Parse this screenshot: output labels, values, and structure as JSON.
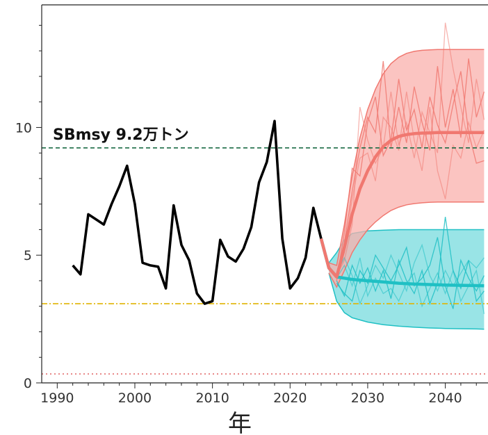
{
  "chart_data": {
    "type": "line",
    "title": "",
    "xlabel": "年",
    "ylabel": "",
    "xlim": [
      1988,
      2045.5
    ],
    "ylim": [
      0,
      14.8
    ],
    "x_ticks": [
      1990,
      2000,
      2010,
      2020,
      2030,
      2040
    ],
    "y_ticks": [
      0,
      5,
      10
    ],
    "grid": false,
    "colors": {
      "observed": "#000000",
      "scenario_high": "#f07870",
      "scenario_high_band": "#f9b0ac",
      "scenario_low": "#1fc0c4",
      "scenario_low_band": "#7fdde0",
      "sbmsy_line": "#1a6b45",
      "lower_ref_line": "#e0b400",
      "limit_line": "#e06060"
    },
    "reference_lines": [
      {
        "id": "sbmsy",
        "label": "SBmsy 9.2万トン",
        "y": 9.2
      },
      {
        "id": "lower",
        "label": "",
        "y": 3.1
      },
      {
        "id": "limit",
        "label": "",
        "y": 0.35
      }
    ],
    "series": [
      {
        "id": "observed",
        "x": [
          1992,
          1993,
          1994,
          1995,
          1996,
          1997,
          1998,
          1999,
          2000,
          2001,
          2002,
          2003,
          2004,
          2005,
          2006,
          2007,
          2008,
          2009,
          2010,
          2011,
          2012,
          2013,
          2014,
          2015,
          2016,
          2017,
          2018,
          2019,
          2020,
          2021,
          2022,
          2023,
          2024
        ],
        "y": [
          4.6,
          4.25,
          6.6,
          6.4,
          6.2,
          7.0,
          7.7,
          8.5,
          7.0,
          4.7,
          4.6,
          4.55,
          3.7,
          6.95,
          5.4,
          4.8,
          3.5,
          3.1,
          3.2,
          5.6,
          4.95,
          4.75,
          5.25,
          6.1,
          7.85,
          8.65,
          10.25,
          5.65,
          3.7,
          4.1,
          4.9,
          6.85,
          5.65
        ]
      },
      {
        "id": "scenario_high_mean",
        "x": [
          2024,
          2025,
          2026,
          2027,
          2028,
          2029,
          2030,
          2031,
          2032,
          2033,
          2034,
          2035,
          2036,
          2037,
          2038,
          2039,
          2040,
          2041,
          2042,
          2043,
          2044,
          2045
        ],
        "y": [
          5.65,
          4.5,
          4.15,
          5.3,
          6.6,
          7.6,
          8.3,
          8.85,
          9.25,
          9.5,
          9.65,
          9.72,
          9.76,
          9.78,
          9.79,
          9.8,
          9.8,
          9.8,
          9.8,
          9.8,
          9.8,
          9.8
        ]
      },
      {
        "id": "scenario_high_upper",
        "x": [
          2025,
          2026,
          2027,
          2028,
          2029,
          2030,
          2031,
          2032,
          2033,
          2034,
          2035,
          2036,
          2037,
          2038,
          2039,
          2040,
          2041,
          2042,
          2043,
          2044,
          2045
        ],
        "y": [
          4.7,
          4.6,
          6.2,
          8.1,
          9.6,
          10.7,
          11.5,
          12.1,
          12.5,
          12.75,
          12.9,
          12.98,
          13.02,
          13.04,
          13.05,
          13.05,
          13.05,
          13.05,
          13.05,
          13.05,
          13.05
        ]
      },
      {
        "id": "scenario_high_lower",
        "x": [
          2025,
          2026,
          2027,
          2028,
          2029,
          2030,
          2031,
          2032,
          2033,
          2034,
          2035,
          2036,
          2037,
          2038,
          2039,
          2040,
          2041,
          2042,
          2043,
          2044,
          2045
        ],
        "y": [
          4.3,
          3.75,
          4.4,
          5.1,
          5.6,
          6.0,
          6.3,
          6.55,
          6.75,
          6.88,
          6.97,
          7.02,
          7.05,
          7.07,
          7.08,
          7.08,
          7.08,
          7.08,
          7.08,
          7.08,
          7.08
        ]
      },
      {
        "id": "scenario_low_mean",
        "x": [
          2024,
          2025,
          2026,
          2027,
          2028,
          2030,
          2032,
          2034,
          2036,
          2038,
          2040,
          2042,
          2044,
          2045
        ],
        "y": [
          5.65,
          4.5,
          4.15,
          4.1,
          4.05,
          4.0,
          3.95,
          3.9,
          3.87,
          3.85,
          3.83,
          3.82,
          3.81,
          3.8
        ]
      },
      {
        "id": "scenario_low_upper",
        "x": [
          2025,
          2026,
          2027,
          2028,
          2030,
          2032,
          2034,
          2036,
          2038,
          2040,
          2042,
          2044,
          2045
        ],
        "y": [
          4.7,
          5.1,
          5.6,
          5.85,
          5.95,
          5.98,
          6.0,
          6.0,
          6.0,
          6.0,
          6.0,
          6.0,
          6.0
        ]
      },
      {
        "id": "scenario_low_lower",
        "x": [
          2025,
          2026,
          2027,
          2028,
          2030,
          2032,
          2034,
          2036,
          2038,
          2040,
          2042,
          2044,
          2045
        ],
        "y": [
          4.3,
          3.2,
          2.75,
          2.55,
          2.38,
          2.28,
          2.22,
          2.18,
          2.15,
          2.13,
          2.12,
          2.11,
          2.1
        ]
      },
      {
        "id": "scenario_high_samples",
        "x": [
          2026,
          2027,
          2028,
          2029,
          2030,
          2031,
          2032,
          2033,
          2034,
          2035,
          2036,
          2037,
          2038,
          2039,
          2040,
          2041,
          2042,
          2043,
          2044,
          2045
        ],
        "runs": [
          [
            4.1,
            5.5,
            7.5,
            9.2,
            10.4,
            9.8,
            12.6,
            9.2,
            10.8,
            9.4,
            11.6,
            10.2,
            9.1,
            12.4,
            10.0,
            11.5,
            9.6,
            12.7,
            10.4,
            11.4
          ],
          [
            4.2,
            4.8,
            6.2,
            10.8,
            9.5,
            8.6,
            9.2,
            11.4,
            9.3,
            10.2,
            8.8,
            10.6,
            9.8,
            9.0,
            14.1,
            12.3,
            10.8,
            9.4,
            11.9,
            10.3
          ],
          [
            4.0,
            5.9,
            8.4,
            8.1,
            10.2,
            11.2,
            8.9,
            9.5,
            11.9,
            9.9,
            10.7,
            9.2,
            11.2,
            10.1,
            9.4,
            10.9,
            12.2,
            9.8,
            8.6,
            8.7
          ],
          [
            4.3,
            5.1,
            7.2,
            8.8,
            9.0,
            7.9,
            10.4,
            10.0,
            9.1,
            11.4,
            9.5,
            8.3,
            10.8,
            8.3,
            7.2,
            9.3,
            8.8,
            10.2,
            9.2,
            9.9
          ]
        ]
      },
      {
        "id": "scenario_low_samples",
        "x": [
          2026,
          2027,
          2028,
          2029,
          2030,
          2031,
          2032,
          2033,
          2034,
          2035,
          2036,
          2037,
          2038,
          2039,
          2040,
          2041,
          2042,
          2043,
          2044,
          2045
        ],
        "runs": [
          [
            4.0,
            3.4,
            4.6,
            3.9,
            4.5,
            3.6,
            4.4,
            3.3,
            4.8,
            4.0,
            3.5,
            4.4,
            3.1,
            3.9,
            6.5,
            4.4,
            3.7,
            4.8,
            3.2,
            3.6
          ],
          [
            4.3,
            4.9,
            4.2,
            3.1,
            3.8,
            4.6,
            4.1,
            5.0,
            4.3,
            3.6,
            4.7,
            5.4,
            4.2,
            3.6,
            4.4,
            3.8,
            4.3,
            4.8,
            4.5,
            4.9
          ],
          [
            3.9,
            3.5,
            3.2,
            4.4,
            3.9,
            5.0,
            4.5,
            4.0,
            4.6,
            5.3,
            3.8,
            4.1,
            4.6,
            5.7,
            3.8,
            2.9,
            4.8,
            4.1,
            3.6,
            4.2
          ],
          [
            4.1,
            4.6,
            3.8,
            4.9,
            3.4,
            4.1,
            3.5,
            3.7,
            3.2,
            3.9,
            4.3,
            3.0,
            3.7,
            4.3,
            3.5,
            4.4,
            3.2,
            3.8,
            4.4,
            2.7
          ]
        ]
      }
    ]
  }
}
